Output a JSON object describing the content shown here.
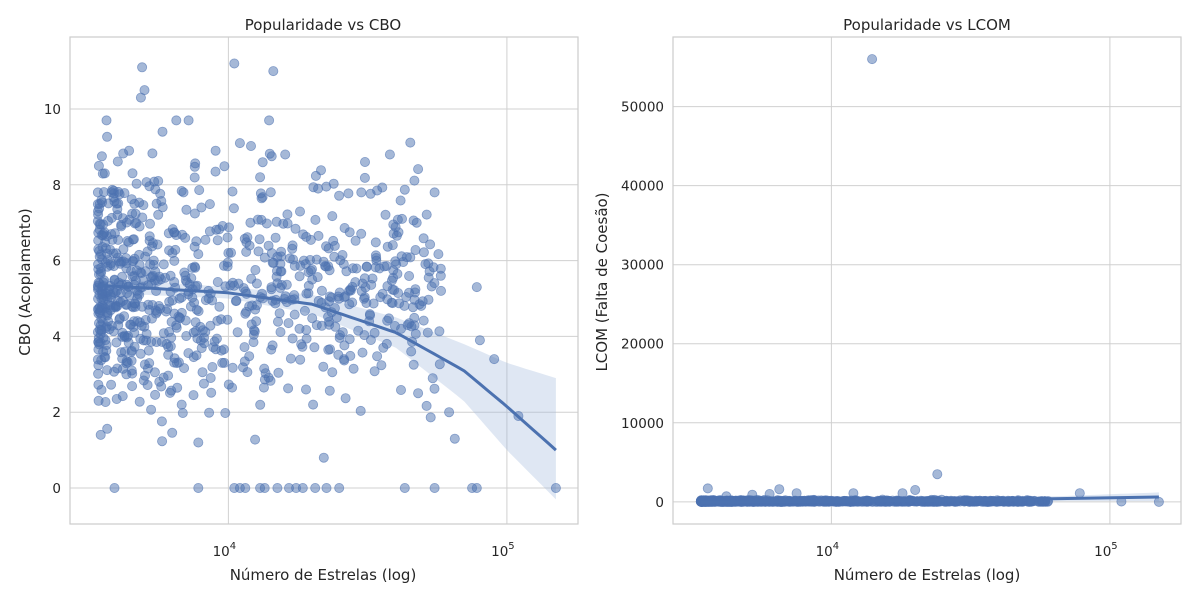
{
  "chart_data": [
    {
      "type": "scatter",
      "title": "Popularidade vs CBO",
      "xlabel": "Número de Estrelas (log)",
      "ylabel": "CBO (Acoplamento)",
      "x_scale": "log",
      "xlim": [
        2700,
        180000
      ],
      "ylim": [
        -0.95,
        11.9
      ],
      "x_ticks": [
        {
          "value": 10000,
          "base": "10",
          "exp": "4"
        },
        {
          "value": 100000,
          "base": "10",
          "exp": "5"
        }
      ],
      "y_ticks": [
        0,
        2,
        4,
        6,
        8,
        10
      ],
      "grid": true,
      "points_note": "approx. 1000 repositories; dense cluster near 3,500–12,000 stars with CBO between 3 and 8",
      "series": [
        {
          "values": [
            {
              "x": 3400,
              "y": 7.8
            },
            {
              "x": 3500,
              "y": 5.0
            },
            {
              "x": 3450,
              "y": 6.1
            },
            {
              "x": 3600,
              "y": 8.3
            },
            {
              "x": 3700,
              "y": 4.4
            },
            {
              "x": 3800,
              "y": 6.7
            },
            {
              "x": 3550,
              "y": 3.6
            },
            {
              "x": 3900,
              "y": 5.5
            },
            {
              "x": 3650,
              "y": 9.7
            },
            {
              "x": 4000,
              "y": 7.2
            },
            {
              "x": 3420,
              "y": 2.3
            },
            {
              "x": 3480,
              "y": 1.4
            },
            {
              "x": 4100,
              "y": 4.9
            },
            {
              "x": 4200,
              "y": 6.3
            },
            {
              "x": 4300,
              "y": 5.8
            },
            {
              "x": 4400,
              "y": 8.9
            },
            {
              "x": 4500,
              "y": 3.1
            },
            {
              "x": 4600,
              "y": 7.5
            },
            {
              "x": 4700,
              "y": 5.2
            },
            {
              "x": 4800,
              "y": 6.9
            },
            {
              "x": 4900,
              "y": 11.1
            },
            {
              "x": 5000,
              "y": 10.5
            },
            {
              "x": 4850,
              "y": 10.3
            },
            {
              "x": 5200,
              "y": 4.7
            },
            {
              "x": 5400,
              "y": 6.0
            },
            {
              "x": 5600,
              "y": 8.1
            },
            {
              "x": 5800,
              "y": 9.4
            },
            {
              "x": 6000,
              "y": 3.8
            },
            {
              "x": 6200,
              "y": 5.6
            },
            {
              "x": 6500,
              "y": 9.7
            },
            {
              "x": 6800,
              "y": 2.2
            },
            {
              "x": 7000,
              "y": 6.6
            },
            {
              "x": 7200,
              "y": 9.7
            },
            {
              "x": 7500,
              "y": 4.1
            },
            {
              "x": 7800,
              "y": 1.2
            },
            {
              "x": 8000,
              "y": 7.4
            },
            {
              "x": 8500,
              "y": 5.0
            },
            {
              "x": 9000,
              "y": 8.9
            },
            {
              "x": 9500,
              "y": 3.3
            },
            {
              "x": 10000,
              "y": 6.2
            },
            {
              "x": 10500,
              "y": 11.2
            },
            {
              "x": 11000,
              "y": 9.1
            },
            {
              "x": 11500,
              "y": 4.6
            },
            {
              "x": 12000,
              "y": 7.0
            },
            {
              "x": 13000,
              "y": 8.2
            },
            {
              "x": 14000,
              "y": 9.7
            },
            {
              "x": 14500,
              "y": 11.0
            },
            {
              "x": 15000,
              "y": 5.4
            },
            {
              "x": 16000,
              "y": 8.8
            },
            {
              "x": 17000,
              "y": 6.4
            },
            {
              "x": 18000,
              "y": 4.2
            },
            {
              "x": 19000,
              "y": 2.6
            },
            {
              "x": 20000,
              "y": 5.5
            },
            {
              "x": 21000,
              "y": 7.9
            },
            {
              "x": 22000,
              "y": 0.8
            },
            {
              "x": 24000,
              "y": 6.1
            },
            {
              "x": 26000,
              "y": 3.4
            },
            {
              "x": 28000,
              "y": 5.8
            },
            {
              "x": 30000,
              "y": 7.8
            },
            {
              "x": 32000,
              "y": 4.4
            },
            {
              "x": 34000,
              "y": 6.0
            },
            {
              "x": 36000,
              "y": 3.7
            },
            {
              "x": 38000,
              "y": 8.8
            },
            {
              "x": 40000,
              "y": 5.9
            },
            {
              "x": 42000,
              "y": 7.1
            },
            {
              "x": 44000,
              "y": 4.3
            },
            {
              "x": 48000,
              "y": 2.5
            },
            {
              "x": 52000,
              "y": 4.1
            },
            {
              "x": 55000,
              "y": 7.8
            },
            {
              "x": 58000,
              "y": 5.2
            },
            {
              "x": 62000,
              "y": 2.0
            },
            {
              "x": 65000,
              "y": 1.3
            },
            {
              "x": 78000,
              "y": 5.3
            },
            {
              "x": 80000,
              "y": 3.9
            },
            {
              "x": 90000,
              "y": 3.4
            },
            {
              "x": 110000,
              "y": 1.9
            },
            {
              "x": 3900,
              "y": 0
            },
            {
              "x": 7800,
              "y": 0
            },
            {
              "x": 10500,
              "y": 0
            },
            {
              "x": 11000,
              "y": 0
            },
            {
              "x": 11500,
              "y": 0
            },
            {
              "x": 13000,
              "y": 0
            },
            {
              "x": 13500,
              "y": 0
            },
            {
              "x": 15000,
              "y": 0
            },
            {
              "x": 16500,
              "y": 0
            },
            {
              "x": 17500,
              "y": 0
            },
            {
              "x": 18500,
              "y": 0
            },
            {
              "x": 20500,
              "y": 0
            },
            {
              "x": 22500,
              "y": 0
            },
            {
              "x": 25000,
              "y": 0
            },
            {
              "x": 43000,
              "y": 0
            },
            {
              "x": 55000,
              "y": 0
            },
            {
              "x": 75000,
              "y": 0
            },
            {
              "x": 78000,
              "y": 0
            },
            {
              "x": 150000,
              "y": 0
            }
          ]
        }
      ],
      "regression": {
        "x": [
          3400,
          10000,
          20000,
          40000,
          70000,
          100000,
          150000
        ],
        "y": [
          5.35,
          5.15,
          4.85,
          4.1,
          3.1,
          2.15,
          1.0
        ],
        "ci_lower": [
          5.15,
          5.0,
          4.6,
          3.7,
          2.3,
          1.0,
          -0.3
        ],
        "ci_upper": [
          5.55,
          5.3,
          5.1,
          4.5,
          3.8,
          3.3,
          2.9
        ]
      }
    },
    {
      "type": "scatter",
      "title": "Popularidade vs LCOM",
      "xlabel": "Número de Estrelas (log)",
      "ylabel": "LCOM (Falta de Coesão)",
      "x_scale": "log",
      "xlim": [
        2700,
        180000
      ],
      "ylim": [
        -2800,
        58800
      ],
      "x_ticks": [
        {
          "value": 10000,
          "base": "10",
          "exp": "4"
        },
        {
          "value": 100000,
          "base": "10",
          "exp": "5"
        }
      ],
      "y_ticks": [
        0,
        10000,
        20000,
        30000,
        40000,
        50000
      ],
      "grid": true,
      "points_note": "approx. 1000 repositories; almost all LCOM values near 0 with one outlier at ~56000",
      "series": [
        {
          "values": [
            {
              "x": 14000,
              "y": 56000
            },
            {
              "x": 24000,
              "y": 3500
            },
            {
              "x": 3600,
              "y": 1700
            },
            {
              "x": 6500,
              "y": 1600
            },
            {
              "x": 12000,
              "y": 1100
            },
            {
              "x": 20000,
              "y": 1500
            },
            {
              "x": 18000,
              "y": 1100
            },
            {
              "x": 78000,
              "y": 1100
            },
            {
              "x": 5200,
              "y": 900
            },
            {
              "x": 7500,
              "y": 1100
            },
            {
              "x": 6000,
              "y": 1000
            },
            {
              "x": 4200,
              "y": 700
            },
            {
              "x": 3400,
              "y": 100
            },
            {
              "x": 4000,
              "y": 50
            },
            {
              "x": 5000,
              "y": 200
            },
            {
              "x": 8000,
              "y": 150
            },
            {
              "x": 10000,
              "y": 100
            },
            {
              "x": 15000,
              "y": 80
            },
            {
              "x": 30000,
              "y": 200
            },
            {
              "x": 40000,
              "y": 60
            },
            {
              "x": 60000,
              "y": 100
            },
            {
              "x": 110000,
              "y": 50
            },
            {
              "x": 150000,
              "y": 0
            }
          ]
        }
      ],
      "regression": {
        "x": [
          3400,
          10000,
          30000,
          70000,
          150000
        ],
        "y": [
          -50,
          80,
          250,
          420,
          620
        ],
        "ci_lower": [
          -150,
          0,
          100,
          100,
          100
        ],
        "ci_upper": [
          80,
          160,
          400,
          750,
          1200
        ]
      }
    }
  ]
}
